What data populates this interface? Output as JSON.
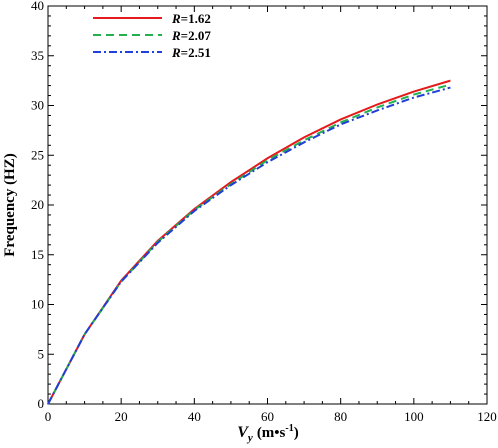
{
  "chart_data": {
    "type": "line",
    "xlabel": {
      "main": "V",
      "sub": "y",
      "unit": "(m•s",
      "sup": "-1",
      "close": ")"
    },
    "ylabel": "Frequency (HZ)",
    "xlim": [
      0,
      120
    ],
    "ylim": [
      0,
      40
    ],
    "xticks": [
      "0",
      "20",
      "40",
      "60",
      "80",
      "100",
      "120"
    ],
    "yticks": [
      "0",
      "5",
      "10",
      "15",
      "20",
      "25",
      "30",
      "35",
      "40"
    ],
    "grid": false,
    "legend_position": "top-left",
    "series": [
      {
        "name": "R=1.62",
        "label_var": "R",
        "label_val": "=1.62",
        "color": "#e41a1c",
        "dash": "solid",
        "x": [
          0,
          10,
          20,
          30,
          40,
          50,
          60,
          70,
          80,
          90,
          100,
          110
        ],
        "y": [
          0,
          7.0,
          12.4,
          16.4,
          19.6,
          22.3,
          24.7,
          26.8,
          28.6,
          30.1,
          31.4,
          32.5
        ]
      },
      {
        "name": "R=2.07",
        "label_var": "R",
        "label_val": "=2.07",
        "color": "#22b14c",
        "dash": "dashed",
        "x": [
          0,
          10,
          20,
          30,
          40,
          50,
          60,
          70,
          80,
          90,
          100,
          110
        ],
        "y": [
          0,
          7.0,
          12.3,
          16.3,
          19.5,
          22.1,
          24.5,
          26.5,
          28.3,
          29.8,
          31.1,
          32.1
        ]
      },
      {
        "name": "R=2.51",
        "label_var": "R",
        "label_val": "=2.51",
        "color": "#1f3fd6",
        "dash": "dashdot",
        "x": [
          0,
          10,
          20,
          30,
          40,
          50,
          60,
          70,
          80,
          90,
          100,
          110
        ],
        "y": [
          0,
          7.0,
          12.3,
          16.2,
          19.4,
          22.0,
          24.3,
          26.3,
          28.1,
          29.5,
          30.8,
          31.8
        ]
      }
    ]
  }
}
